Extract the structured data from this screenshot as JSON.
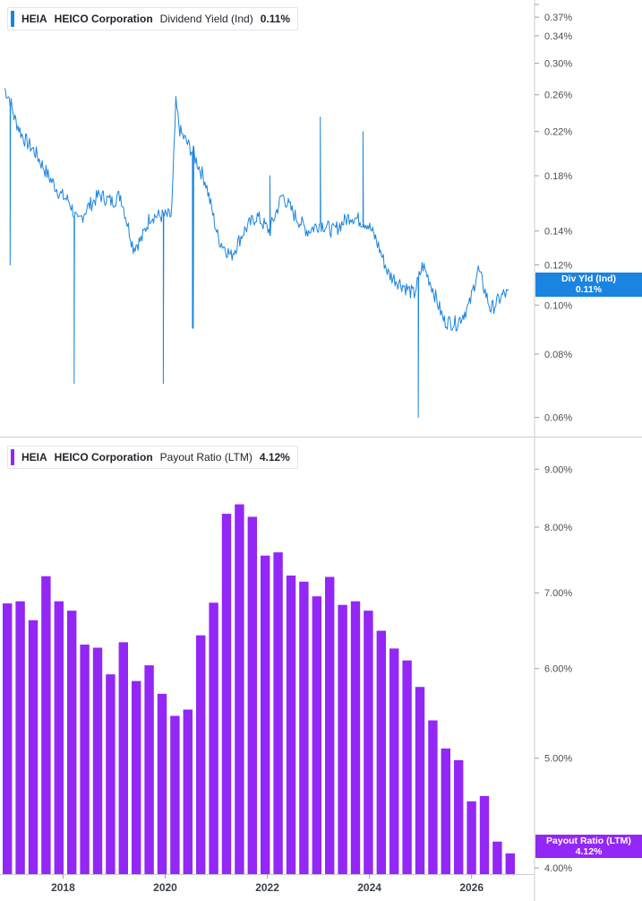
{
  "panels": {
    "top": {
      "ticker": "HEIA",
      "company": "HEICO Corporation",
      "metric": "Dividend Yield (Ind)",
      "value": "0.11%",
      "tag_label": "Div Yld (Ind)",
      "tag_value": "0.11%",
      "color": "#1a84e0"
    },
    "bottom": {
      "ticker": "HEIA",
      "company": "HEICO Corporation",
      "metric": "Payout Ratio (LTM)",
      "value": "4.12%",
      "tag_label": "Payout Ratio (LTM)",
      "tag_value": "4.12%",
      "color": "#9327f5"
    }
  },
  "chart_data": [
    {
      "type": "line",
      "series": [
        {
          "name": "Div Yld (Ind)"
        }
      ],
      "scale": "log",
      "ylim": [
        0.055,
        0.4
      ],
      "y_ticks": [
        "0.37%",
        "0.34%",
        "0.30%",
        "0.26%",
        "0.22%",
        "0.18%",
        "0.14%",
        "0.12%",
        "0.10%",
        "0.08%",
        "0.06%"
      ],
      "points": [
        [
          "2016-10",
          0.275
        ],
        [
          "2016-12",
          0.255
        ],
        [
          "2017-01",
          0.235
        ],
        [
          "2017-03",
          0.215
        ],
        [
          "2017-06",
          0.2
        ],
        [
          "2017-09",
          0.18
        ],
        [
          "2017-12",
          0.165
        ],
        [
          "2018-02",
          0.16
        ],
        [
          "2018-04",
          0.145
        ],
        [
          "2018-06",
          0.155
        ],
        [
          "2018-09",
          0.165
        ],
        [
          "2018-12",
          0.16
        ],
        [
          "2019-02",
          0.165
        ],
        [
          "2019-05",
          0.13
        ],
        [
          "2019-07",
          0.135
        ],
        [
          "2019-09",
          0.15
        ],
        [
          "2020-01",
          0.15
        ],
        [
          "2020-02",
          0.15
        ],
        [
          "2020-03",
          0.25
        ],
        [
          "2020-04",
          0.22
        ],
        [
          "2020-07",
          0.2
        ],
        [
          "2020-10",
          0.175
        ],
        [
          "2021-01",
          0.135
        ],
        [
          "2021-04",
          0.125
        ],
        [
          "2021-07",
          0.14
        ],
        [
          "2021-10",
          0.15
        ],
        [
          "2022-01",
          0.14
        ],
        [
          "2022-04",
          0.165
        ],
        [
          "2022-07",
          0.15
        ],
        [
          "2022-10",
          0.14
        ],
        [
          "2023-01",
          0.145
        ],
        [
          "2023-04",
          0.14
        ],
        [
          "2023-08",
          0.15
        ],
        [
          "2023-12",
          0.145
        ],
        [
          "2024-02",
          0.135
        ],
        [
          "2024-05",
          0.115
        ],
        [
          "2024-08",
          0.11
        ],
        [
          "2024-11",
          0.105
        ],
        [
          "2025-01",
          0.12
        ],
        [
          "2025-03",
          0.11
        ],
        [
          "2025-06",
          0.093
        ],
        [
          "2025-09",
          0.092
        ],
        [
          "2025-12",
          0.1
        ],
        [
          "2026-02",
          0.118
        ],
        [
          "2026-05",
          0.098
        ],
        [
          "2026-08",
          0.105
        ]
      ],
      "spikes": [
        [
          "2016-12",
          0.12
        ],
        [
          "2018-03",
          0.07
        ],
        [
          "2019-12",
          0.07
        ],
        [
          "2020-07",
          0.09
        ],
        [
          "2022-01",
          0.18
        ],
        [
          "2023-01",
          0.235
        ],
        [
          "2023-11",
          0.22
        ],
        [
          "2024-12",
          0.06
        ]
      ]
    },
    {
      "type": "bar",
      "series": [
        {
          "name": "Payout Ratio (LTM)"
        }
      ],
      "scale": "log",
      "ylim": [
        3.95,
        9.6
      ],
      "y_ticks": [
        "9.00%",
        "8.00%",
        "7.00%",
        "6.00%",
        "5.00%",
        "4.00%"
      ],
      "x_ticks": [
        "2018",
        "2020",
        "2022",
        "2024",
        "2026"
      ],
      "categories": [
        "2016-Q4",
        "2017-Q1",
        "2017-Q2",
        "2017-Q3",
        "2017-Q4",
        "2018-Q1",
        "2018-Q2",
        "2018-Q3",
        "2018-Q4",
        "2019-Q1",
        "2019-Q2",
        "2019-Q3",
        "2019-Q4",
        "2020-Q1",
        "2020-Q2",
        "2020-Q3",
        "2020-Q4",
        "2021-Q1",
        "2021-Q2",
        "2021-Q3",
        "2021-Q4",
        "2022-Q1",
        "2022-Q2",
        "2022-Q3",
        "2022-Q4",
        "2023-Q1",
        "2023-Q2",
        "2023-Q3",
        "2023-Q4",
        "2024-Q1",
        "2024-Q2",
        "2024-Q3",
        "2024-Q4",
        "2025-Q1",
        "2025-Q2",
        "2025-Q3",
        "2025-Q4",
        "2026-Q1",
        "2026-Q2",
        "2026-Q3"
      ],
      "values": [
        6.85,
        6.88,
        6.62,
        7.24,
        6.88,
        6.75,
        6.3,
        6.26,
        5.93,
        6.33,
        5.85,
        6.04,
        5.7,
        5.45,
        5.52,
        6.42,
        6.86,
        8.22,
        8.38,
        8.17,
        7.55,
        7.6,
        7.25,
        7.16,
        6.95,
        7.23,
        6.83,
        6.88,
        6.75,
        6.48,
        6.25,
        6.1,
        5.78,
        5.4,
        5.1,
        4.98,
        4.58,
        4.63,
        4.22,
        4.12
      ]
    }
  ]
}
